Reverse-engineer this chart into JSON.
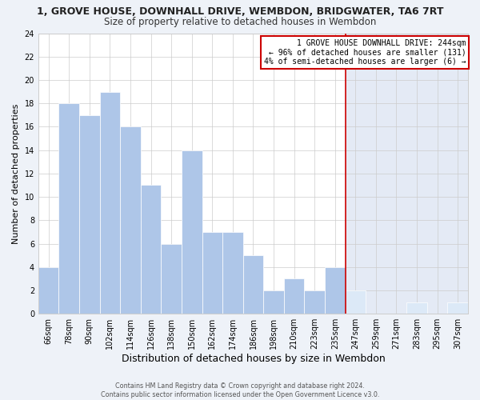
{
  "title": "1, GROVE HOUSE, DOWNHALL DRIVE, WEMBDON, BRIDGWATER, TA6 7RT",
  "subtitle": "Size of property relative to detached houses in Wembdon",
  "xlabel": "Distribution of detached houses by size in Wembdon",
  "ylabel": "Number of detached properties",
  "categories": [
    "66sqm",
    "78sqm",
    "90sqm",
    "102sqm",
    "114sqm",
    "126sqm",
    "138sqm",
    "150sqm",
    "162sqm",
    "174sqm",
    "186sqm",
    "198sqm",
    "210sqm",
    "223sqm",
    "235sqm",
    "247sqm",
    "259sqm",
    "271sqm",
    "283sqm",
    "295sqm",
    "307sqm"
  ],
  "values": [
    4,
    18,
    17,
    19,
    16,
    11,
    6,
    14,
    7,
    7,
    5,
    2,
    3,
    2,
    4,
    2,
    0,
    0,
    1,
    0,
    1
  ],
  "vline_index": 15,
  "bar_color_normal": "#aec6e8",
  "bar_color_highlight": "#dce9f7",
  "vline_color": "#cc0000",
  "legend_line1": "1 GROVE HOUSE DOWNHALL DRIVE: 244sqm",
  "legend_line2": "← 96% of detached houses are smaller (131)",
  "legend_line3": "4% of semi-detached houses are larger (6) →",
  "legend_border_color": "#cc0000",
  "legend_bg_color": "#ffffff",
  "ylim": [
    0,
    24
  ],
  "footnote_line1": "Contains HM Land Registry data © Crown copyright and database right 2024.",
  "footnote_line2": "Contains public sector information licensed under the Open Government Licence v3.0.",
  "fig_bg_color": "#eef2f8",
  "plot_bg_left": "#ffffff",
  "plot_bg_right": "#e4eaf5"
}
